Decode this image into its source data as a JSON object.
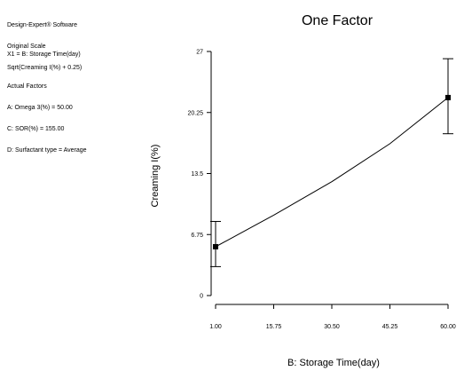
{
  "info_header": {
    "lines": [
      "Design-Expert® Software",
      "Original Scale",
      "Sqrt(Creaming I(%) + 0.25)"
    ]
  },
  "factor_x": "X1 = B: Storage Time(day)",
  "actual_factors": {
    "heading": "Actual Factors",
    "lines": [
      "A: Omega 3(%) = 50.00",
      "C: SOR(%) = 155.00",
      "D: Surfactant type = Average"
    ]
  },
  "chart_data": {
    "type": "line",
    "title": "One Factor",
    "xlabel": "B: Storage Time(day)",
    "ylabel": "Creaming I(%)",
    "xlim": [
      1.0,
      60.0
    ],
    "ylim": [
      0,
      27
    ],
    "x_ticks": [
      "1.00",
      "15.75",
      "30.50",
      "45.25",
      "60.00"
    ],
    "y_ticks": [
      "0",
      "6.75",
      "13.5",
      "20.25",
      "27"
    ],
    "curve": {
      "x": [
        1.0,
        15.75,
        30.5,
        45.25,
        60.0
      ],
      "y": [
        5.4,
        8.9,
        12.6,
        16.8,
        21.9
      ]
    },
    "points": [
      {
        "x": 1.0,
        "y": 5.4,
        "low": 3.2,
        "high": 8.2
      },
      {
        "x": 60.0,
        "y": 21.9,
        "low": 17.9,
        "high": 26.2
      }
    ]
  }
}
